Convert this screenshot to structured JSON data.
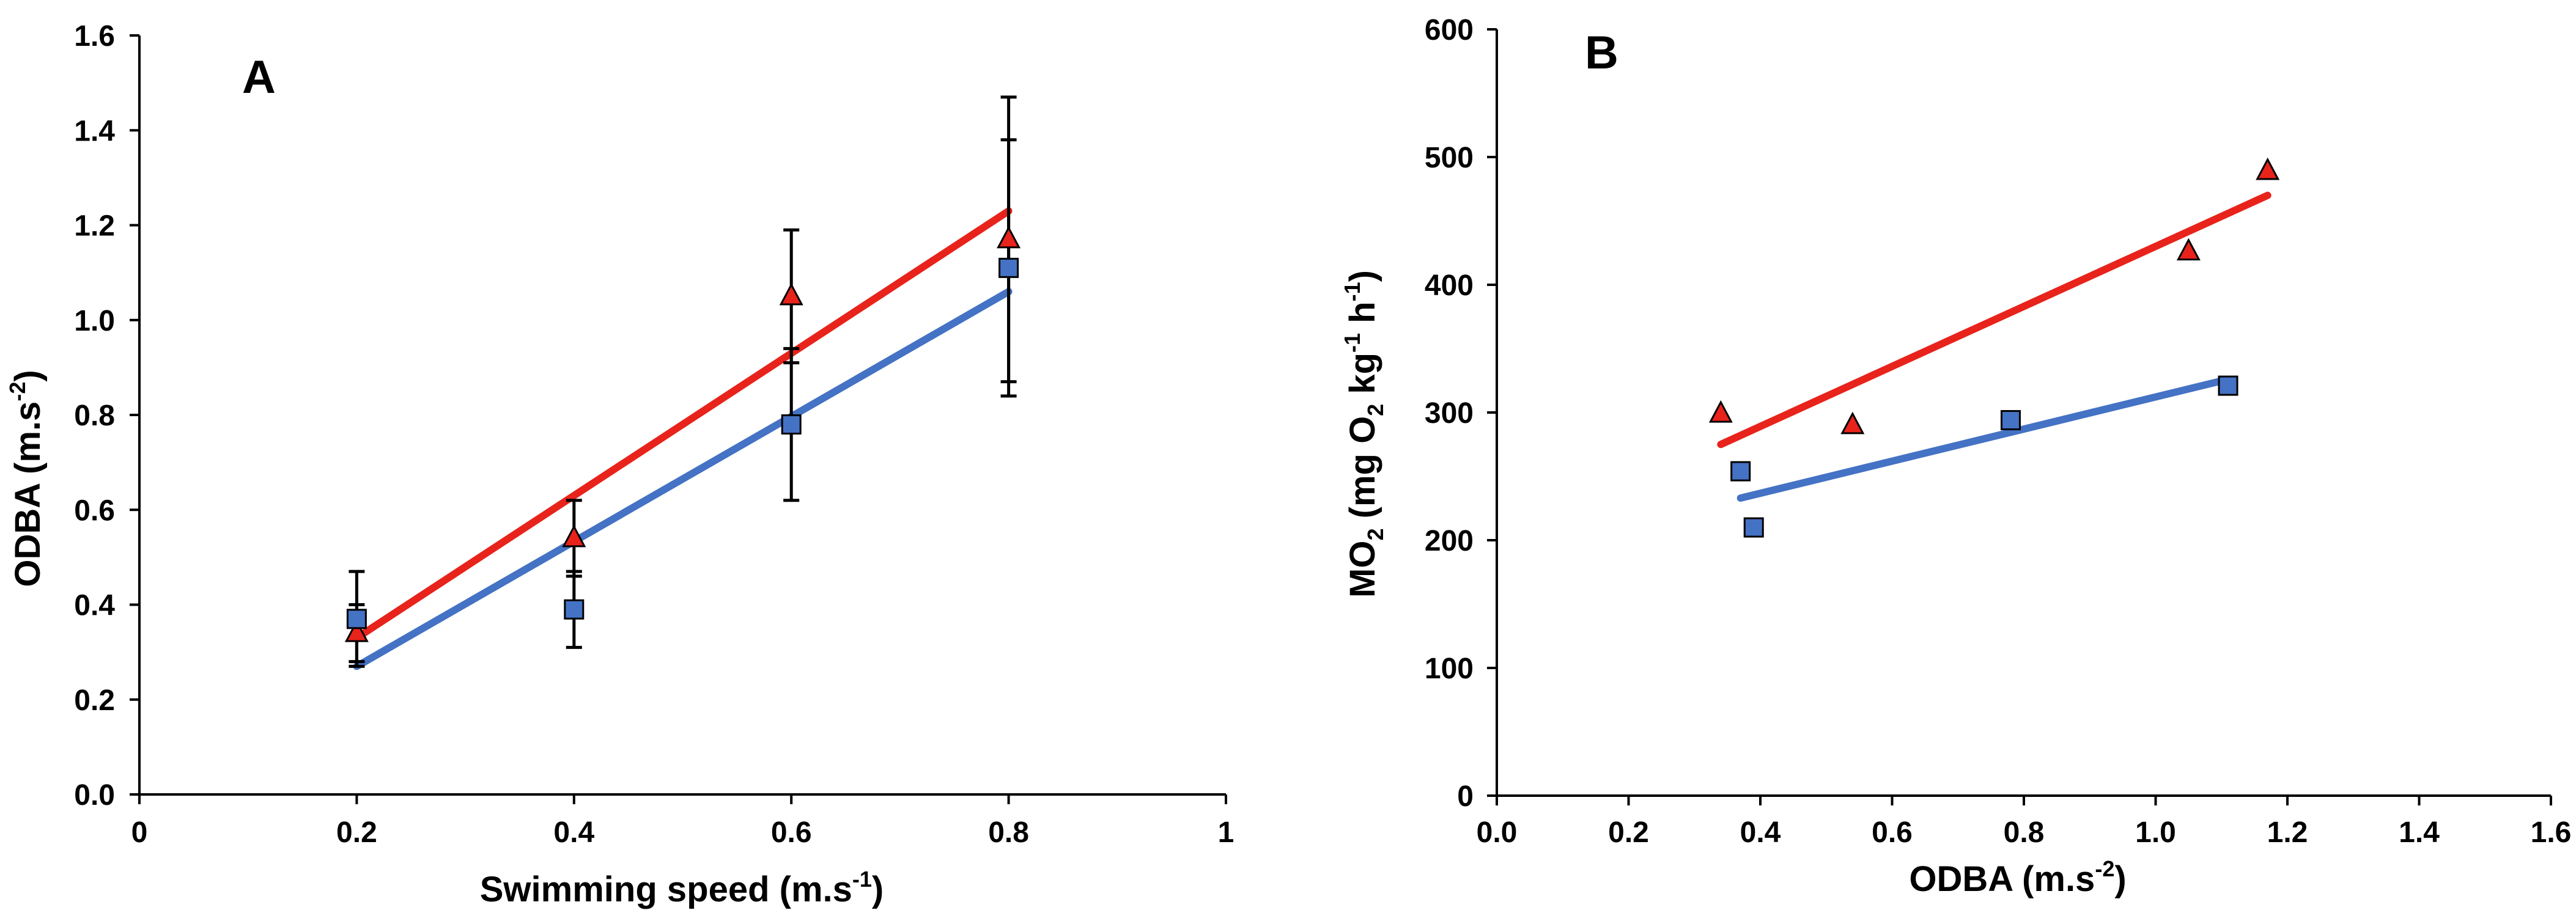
{
  "chart_data": [
    {
      "type": "scatter",
      "panel_label": "A",
      "xlabel": "Swimming speed (m.s",
      "xlabel_sup": "-1",
      "xlabel_tail": ")",
      "ylabel": "ODBA (m.s",
      "ylabel_sup": "-2",
      "ylabel_tail": ")",
      "xlim": [
        0,
        1
      ],
      "ylim": [
        0,
        1.6
      ],
      "x_ticks": [
        0,
        0.2,
        0.4,
        0.6,
        0.8,
        1
      ],
      "x_tick_labels": [
        "0",
        "0.2",
        "0.4",
        "0.6",
        "0.8",
        "1"
      ],
      "y_ticks": [
        0,
        0.2,
        0.4,
        0.6,
        0.8,
        1.0,
        1.2,
        1.4,
        1.6
      ],
      "y_tick_labels": [
        "0.0",
        "0.2",
        "0.4",
        "0.6",
        "0.8",
        "1.0",
        "1.2",
        "1.4",
        "1.6"
      ],
      "grid": false,
      "series": [
        {
          "name": "triangle series",
          "marker": "triangle",
          "color": "#e8231b",
          "x": [
            0.2,
            0.4,
            0.6,
            0.8
          ],
          "y": [
            0.34,
            0.54,
            1.05,
            1.17
          ],
          "err": [
            0.06,
            0.08,
            0.14,
            0.3
          ],
          "trend": {
            "x": [
              0.2,
              0.8
            ],
            "y": [
              0.33,
              1.23
            ]
          }
        },
        {
          "name": "square series",
          "marker": "square",
          "color": "#4472c4",
          "x": [
            0.2,
            0.4,
            0.6,
            0.8
          ],
          "y": [
            0.37,
            0.39,
            0.78,
            1.11
          ],
          "err": [
            0.1,
            0.08,
            0.16,
            0.27
          ],
          "trend": {
            "x": [
              0.2,
              0.8
            ],
            "y": [
              0.27,
              1.06
            ]
          }
        }
      ]
    },
    {
      "type": "scatter",
      "panel_label": "B",
      "xlabel": "ODBA (m.s",
      "xlabel_sup": "-2",
      "xlabel_tail": ")",
      "ylabel_parts": [
        "MO",
        "2",
        " (mg O",
        "2",
        " kg",
        "-1",
        " h",
        "-1",
        ")"
      ],
      "xlim": [
        0,
        1.6
      ],
      "ylim": [
        0,
        600
      ],
      "x_ticks": [
        0,
        0.2,
        0.4,
        0.6,
        0.8,
        1.0,
        1.2,
        1.4,
        1.6
      ],
      "x_tick_labels": [
        "0.0",
        "0.2",
        "0.4",
        "0.6",
        "0.8",
        "1.0",
        "1.2",
        "1.4",
        "1.6"
      ],
      "y_ticks": [
        0,
        100,
        200,
        300,
        400,
        500,
        600
      ],
      "y_tick_labels": [
        "0",
        "100",
        "200",
        "300",
        "400",
        "500",
        "600"
      ],
      "grid": false,
      "series": [
        {
          "name": "triangle series",
          "marker": "triangle",
          "color": "#e8231b",
          "x": [
            0.34,
            0.54,
            1.05,
            1.17
          ],
          "y": [
            299,
            290,
            426,
            489
          ],
          "trend": {
            "x": [
              0.34,
              1.17
            ],
            "y": [
              275,
              470
            ]
          }
        },
        {
          "name": "square series",
          "marker": "square",
          "color": "#4472c4",
          "x": [
            0.37,
            0.39,
            0.78,
            1.11
          ],
          "y": [
            254,
            210,
            294,
            321
          ],
          "trend": {
            "x": [
              0.37,
              1.11
            ],
            "y": [
              233,
              326
            ]
          }
        }
      ]
    }
  ]
}
